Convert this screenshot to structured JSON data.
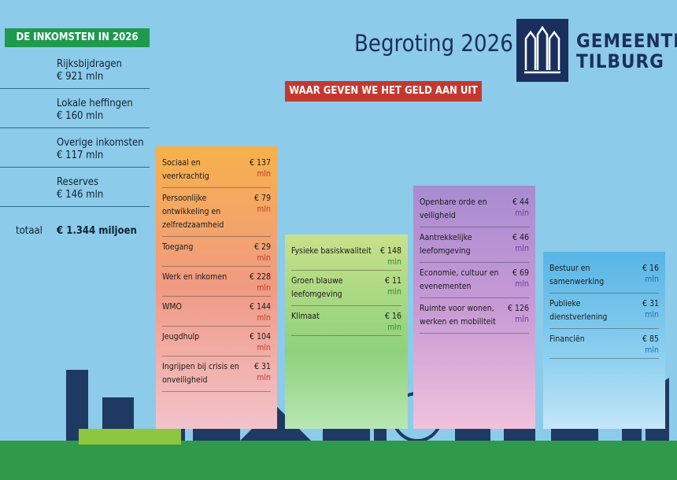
{
  "header": {
    "income_title": "DE INKOMSTEN IN 2026",
    "title": "Begroting 2026",
    "logo_line1": "GEMEENTE",
    "logo_line2": "TILBURG",
    "banner": "WAAR GEVEN WE HET GELD AAN UIT"
  },
  "income": {
    "items": [
      {
        "label": "Rijksbijdragen",
        "amount": "€ 921 mln"
      },
      {
        "label": "Lokale heffingen",
        "amount": "€ 160 mln"
      },
      {
        "label": "Overige inkomsten",
        "amount": "€ 117 mln"
      },
      {
        "label": "Reserves",
        "amount": "€ 146 mln"
      }
    ],
    "total_label": "totaal",
    "total_amount": "€ 1.344 miljoen"
  },
  "columns": [
    {
      "items": [
        {
          "label": "Sociaal en veerkrachtig",
          "amount": "€ 137",
          "unit": "mln"
        },
        {
          "label": "Persoonlijke ontwikkeling en zelfredzaamheid",
          "amount": "€ 79",
          "unit": "mln"
        },
        {
          "label": "Toegang",
          "amount": "€ 29",
          "unit": "mln"
        },
        {
          "label": "Werk en inkomen",
          "amount": "€ 228",
          "unit": "mln"
        },
        {
          "label": "WMO",
          "amount": "€ 144",
          "unit": "mln"
        },
        {
          "label": "Jeugdhulp",
          "amount": "€ 104",
          "unit": "mln"
        },
        {
          "label": "Ingrijpen bij crisis en onveiligheid",
          "amount": "€ 31",
          "unit": "mln"
        }
      ]
    },
    {
      "items": [
        {
          "label": "Fysieke basiskwaliteit",
          "amount": "€ 148",
          "unit": "mln"
        },
        {
          "label": "Groen blauwe leefomgeving",
          "amount": "€ 11",
          "unit": "mln"
        },
        {
          "label": "Klimaat",
          "amount": "€ 16",
          "unit": "mln"
        }
      ]
    },
    {
      "items": [
        {
          "label": "Openbare orde en veiligheid",
          "amount": "€ 44",
          "unit": "mln"
        },
        {
          "label": "Aantrekkelijke leefomgeving",
          "amount": "€ 46",
          "unit": "mln"
        },
        {
          "label": "Economie, cultuur en evenementen",
          "amount": "€ 69",
          "unit": "mln"
        },
        {
          "label": "Ruimte voor wonen, werken en mobiliteit",
          "amount": "€ 126",
          "unit": "mln"
        }
      ]
    },
    {
      "items": [
        {
          "label": "Bestuur en samenwerking",
          "amount": "€ 16",
          "unit": "mln"
        },
        {
          "label": "Publieke dienstverlening",
          "amount": "€ 31",
          "unit": "mln"
        },
        {
          "label": "Financiën",
          "amount": "€ 85",
          "unit": "mln"
        }
      ]
    }
  ]
}
